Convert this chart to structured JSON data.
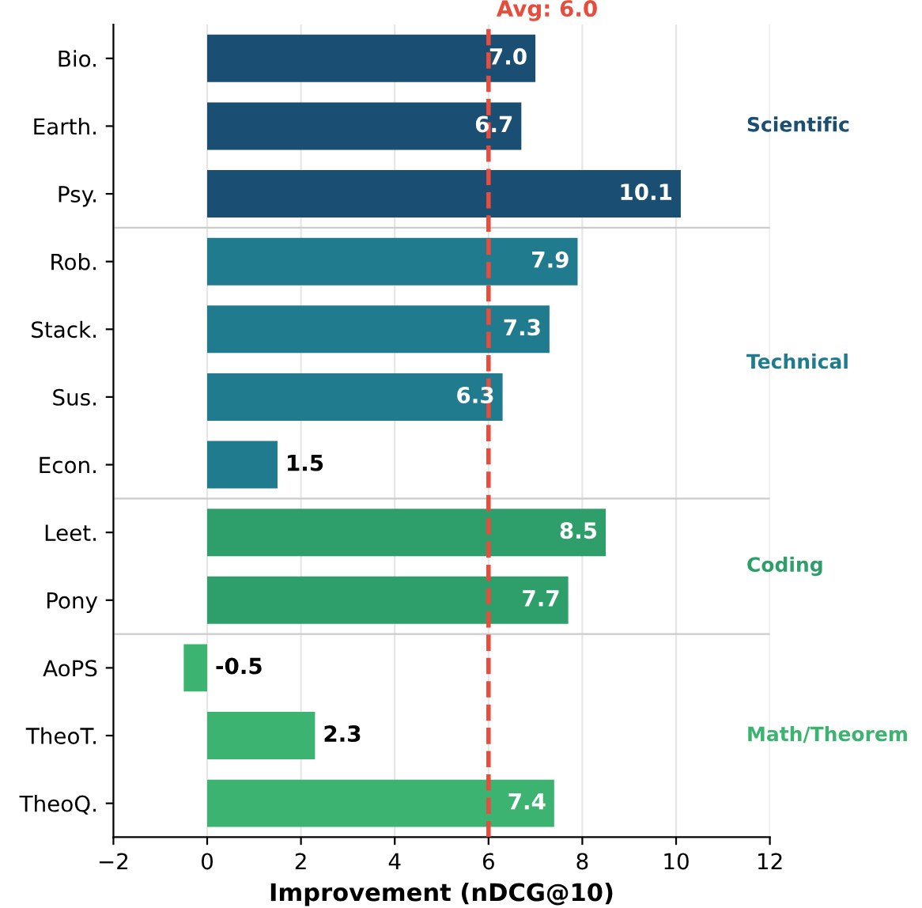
{
  "chart_data": {
    "type": "bar",
    "orientation": "horizontal",
    "xlabel": "Improvement (nDCG@10)",
    "categories": [
      "Bio.",
      "Earth.",
      "Psy.",
      "Rob.",
      "Stack.",
      "Sus.",
      "Econ.",
      "Leet.",
      "Pony",
      "AoPS",
      "TheoT.",
      "TheoQ."
    ],
    "values": [
      7.0,
      6.7,
      10.1,
      7.9,
      7.3,
      6.3,
      1.5,
      8.5,
      7.7,
      -0.5,
      2.3,
      7.4
    ],
    "value_labels": [
      "7.0",
      "6.7",
      "10.1",
      "7.9",
      "7.3",
      "6.3",
      "1.5",
      "8.5",
      "7.7",
      "-0.5",
      "2.3",
      "7.4"
    ],
    "colors": [
      "#1a4e72",
      "#1a4e72",
      "#1a4e72",
      "#217b8e",
      "#217b8e",
      "#217b8e",
      "#217b8e",
      "#2e9e6b",
      "#2e9e6b",
      "#3cb371",
      "#3cb371",
      "#3cb371"
    ],
    "annotations": [
      "Scientific",
      "Technical",
      "Coding",
      "Math/Theorem"
    ],
    "xlim": [
      -2,
      12
    ],
    "xticks": [
      {
        "value": -2,
        "label": "−2"
      },
      0,
      2,
      4,
      6,
      8,
      10,
      12
    ],
    "ref_lines": [
      {
        "axis": "x",
        "value": 6.0,
        "label": "Avg: 6.0",
        "color": "#e74c3c",
        "line_style": "dashed"
      }
    ],
    "grid": "x"
  }
}
